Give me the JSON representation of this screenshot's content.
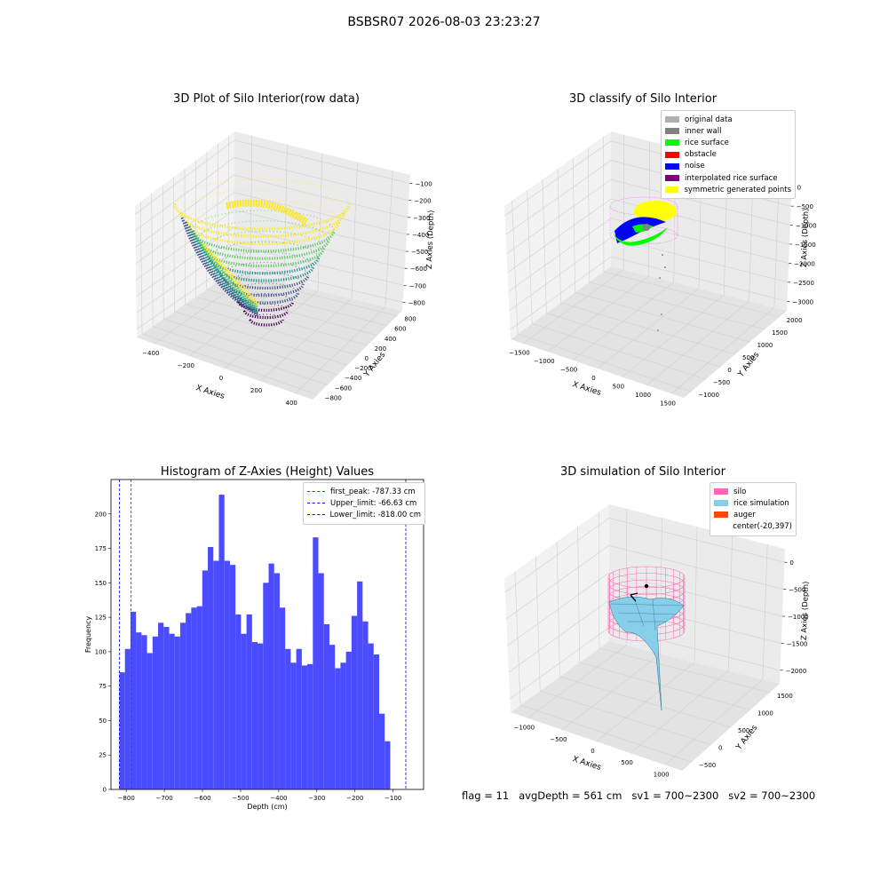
{
  "figure": {
    "suptitle": "BSBSR07 2026-08-03 23:23:27",
    "footer": "flag = 11   avgDepth = 561 cm   sv1 = 700~2300   sv2 = 700~2300"
  },
  "panels": {
    "raw": {
      "title": "3D Plot of Silo Interior(row data)",
      "xlabel": "X Axies",
      "ylabel": "Y Axies",
      "zlabel": "Z Axies (Depth)",
      "x_ticks": [
        "−400",
        "−200",
        "0",
        "200",
        "400"
      ],
      "y_ticks": [
        "−800",
        "−600",
        "−400",
        "−200",
        "0",
        "200",
        "400",
        "600",
        "800"
      ],
      "z_ticks": [
        "−100",
        "−200",
        "−300",
        "−400",
        "−500",
        "−600",
        "−700",
        "−800"
      ],
      "colormap": [
        "#440154",
        "#3b528b",
        "#21918c",
        "#5ec962",
        "#fde725"
      ]
    },
    "classify": {
      "title": "3D classify of Silo Interior",
      "xlabel": "X Axies",
      "ylabel": "Y Axies",
      "zlabel": "Z Axies (Depth)",
      "x_ticks": [
        "−1500",
        "−1000",
        "−500",
        "0",
        "500",
        "1000",
        "1500"
      ],
      "y_ticks": [
        "−1000",
        "−500",
        "0",
        "500",
        "1000",
        "1500",
        "2000"
      ],
      "z_ticks": [
        "0",
        "−500",
        "−1000",
        "−1500",
        "−2000",
        "−2500",
        "−3000"
      ],
      "legend": [
        {
          "label": "original data",
          "color": "#b0b0b0"
        },
        {
          "label": "inner wall",
          "color": "#808080"
        },
        {
          "label": "rice surface",
          "color": "#00ff00"
        },
        {
          "label": "obstacle",
          "color": "#ff0000"
        },
        {
          "label": "noise",
          "color": "#0000ff"
        },
        {
          "label": "interpolated rice surface",
          "color": "#800080"
        },
        {
          "label": "symmetric generated points",
          "color": "#ffff00"
        }
      ]
    },
    "simulation": {
      "title": "3D simulation of Silo Interior",
      "xlabel": "X Axies",
      "ylabel": "Y Axies",
      "zlabel": "Z Axies (Depth)",
      "x_ticks": [
        "−1000",
        "−500",
        "0",
        "500",
        "1000"
      ],
      "y_ticks": [
        "−500",
        "0",
        "500",
        "1000",
        "1500"
      ],
      "z_ticks": [
        "0",
        "−500",
        "−1000",
        "−1500",
        "−2000"
      ],
      "legend": [
        {
          "label": "silo",
          "color": "#ff69b4"
        },
        {
          "label": "rice simulation",
          "color": "#87ceeb"
        },
        {
          "label": "auger",
          "color": "#ff4500"
        },
        {
          "label": "center(-20,397)",
          "color": ""
        }
      ]
    }
  },
  "chart_data": {
    "type": "bar",
    "title": "Histogram of Z-Axies (Height) Values",
    "xlabel": "Depth (cm)",
    "ylabel": "Frequency",
    "xlim": [
      -840,
      -20
    ],
    "ylim": [
      0,
      225
    ],
    "x_ticks": [
      -800,
      -700,
      -600,
      -500,
      -400,
      -300,
      -200,
      -100
    ],
    "y_ticks": [
      0,
      25,
      50,
      75,
      100,
      125,
      150,
      175,
      200
    ],
    "bar_color": "#4b4bff",
    "bins": [
      {
        "x0": -818,
        "x1": -803.5,
        "count": 85
      },
      {
        "x0": -803.5,
        "x1": -789,
        "count": 102
      },
      {
        "x0": -789,
        "x1": -774.5,
        "count": 129
      },
      {
        "x0": -774.5,
        "x1": -760,
        "count": 114
      },
      {
        "x0": -760,
        "x1": -745.5,
        "count": 112
      },
      {
        "x0": -745.5,
        "x1": -731,
        "count": 99
      },
      {
        "x0": -731,
        "x1": -716.5,
        "count": 111
      },
      {
        "x0": -716.5,
        "x1": -702,
        "count": 121
      },
      {
        "x0": -702,
        "x1": -687.5,
        "count": 118
      },
      {
        "x0": -687.5,
        "x1": -673,
        "count": 113
      },
      {
        "x0": -673,
        "x1": -658.5,
        "count": 111
      },
      {
        "x0": -658.5,
        "x1": -644,
        "count": 121
      },
      {
        "x0": -644,
        "x1": -629.5,
        "count": 128
      },
      {
        "x0": -629.5,
        "x1": -615,
        "count": 132
      },
      {
        "x0": -615,
        "x1": -600.5,
        "count": 133
      },
      {
        "x0": -600.5,
        "x1": -586,
        "count": 159
      },
      {
        "x0": -586,
        "x1": -571.5,
        "count": 176
      },
      {
        "x0": -571.5,
        "x1": -557,
        "count": 166
      },
      {
        "x0": -557,
        "x1": -542.5,
        "count": 214
      },
      {
        "x0": -542.5,
        "x1": -528,
        "count": 166
      },
      {
        "x0": -528,
        "x1": -513.5,
        "count": 163
      },
      {
        "x0": -513.5,
        "x1": -499,
        "count": 127
      },
      {
        "x0": -499,
        "x1": -484.5,
        "count": 113
      },
      {
        "x0": -484.5,
        "x1": -470,
        "count": 127
      },
      {
        "x0": -470,
        "x1": -455.5,
        "count": 107
      },
      {
        "x0": -455.5,
        "x1": -441,
        "count": 106
      },
      {
        "x0": -441,
        "x1": -426.5,
        "count": 150
      },
      {
        "x0": -426.5,
        "x1": -412,
        "count": 164
      },
      {
        "x0": -412,
        "x1": -397.5,
        "count": 157
      },
      {
        "x0": -397.5,
        "x1": -383,
        "count": 132
      },
      {
        "x0": -383,
        "x1": -368.5,
        "count": 102
      },
      {
        "x0": -368.5,
        "x1": -354,
        "count": 92
      },
      {
        "x0": -354,
        "x1": -339.5,
        "count": 102
      },
      {
        "x0": -339.5,
        "x1": -325,
        "count": 90
      },
      {
        "x0": -325,
        "x1": -310.5,
        "count": 91
      },
      {
        "x0": -310.5,
        "x1": -296,
        "count": 183
      },
      {
        "x0": -296,
        "x1": -281.5,
        "count": 157
      },
      {
        "x0": -281.5,
        "x1": -267,
        "count": 120
      },
      {
        "x0": -267,
        "x1": -252.5,
        "count": 105
      },
      {
        "x0": -252.5,
        "x1": -238,
        "count": 88
      },
      {
        "x0": -238,
        "x1": -223.5,
        "count": 92
      },
      {
        "x0": -223.5,
        "x1": -209,
        "count": 100
      },
      {
        "x0": -209,
        "x1": -194.5,
        "count": 126
      },
      {
        "x0": -194.5,
        "x1": -180,
        "count": 151
      },
      {
        "x0": -180,
        "x1": -165.5,
        "count": 122
      },
      {
        "x0": -165.5,
        "x1": -151,
        "count": 106
      },
      {
        "x0": -151,
        "x1": -136.5,
        "count": 98
      },
      {
        "x0": -136.5,
        "x1": -122,
        "count": 55
      },
      {
        "x0": -122,
        "x1": -107.5,
        "count": 35
      }
    ],
    "reference_lines": [
      {
        "label": "first_peak: -787.33 cm",
        "x": -787.33,
        "color": "#ff0000"
      },
      {
        "label": "Upper_limit: -66.63 cm",
        "x": -66.63,
        "color": "#0000ff"
      },
      {
        "label": "Lower_limit: -818.00 cm",
        "x": -818.0,
        "color": "#0000ff"
      }
    ],
    "legend_position": "upper right"
  }
}
